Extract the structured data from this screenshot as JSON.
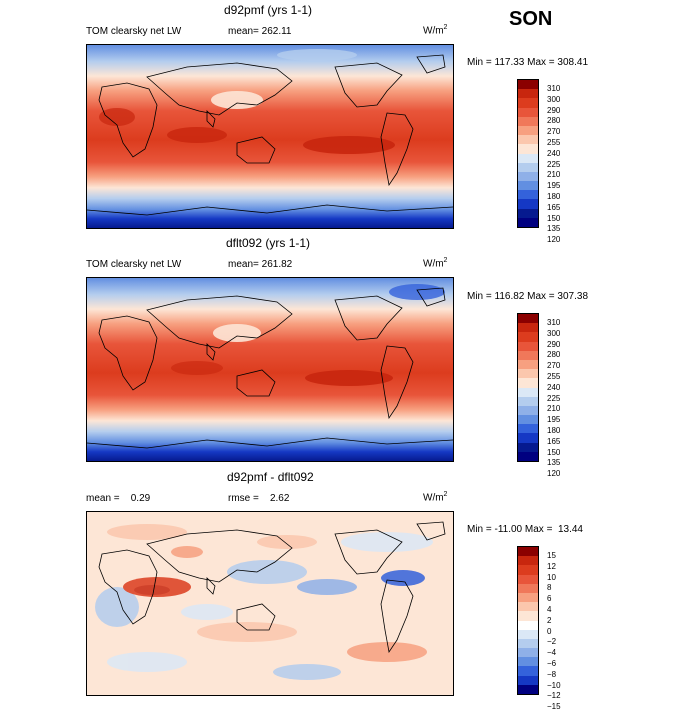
{
  "season": "SON",
  "panels": [
    {
      "title": "d92pmf (yrs 1-1)",
      "left_label": "TOM clearsky net LW",
      "mid_label": "mean= 262.11",
      "units": "W/m",
      "units_sup": "2",
      "minmax": "Min = 117.33 Max = 308.41",
      "levels": [
        "310",
        "300",
        "290",
        "280",
        "270",
        "255",
        "240",
        "225",
        "210",
        "195",
        "180",
        "165",
        "150",
        "135",
        "120"
      ],
      "colors": [
        "#8b0000",
        "#c8260e",
        "#dc3c1e",
        "#e8553a",
        "#f0785a",
        "#f7a080",
        "#fbc7ad",
        "#fde6d6",
        "#dbe8f6",
        "#b4cdee",
        "#8fb0e8",
        "#628fe1",
        "#3462db",
        "#1538c4",
        "#061a8f",
        "#000080"
      ]
    },
    {
      "title": "dflt092 (yrs 1-1)",
      "left_label": "TOM clearsky net LW",
      "mid_label": "mean= 261.82",
      "units": "W/m",
      "units_sup": "2",
      "minmax": "Min = 116.82 Max = 307.38",
      "levels": [
        "310",
        "300",
        "290",
        "280",
        "270",
        "255",
        "240",
        "225",
        "210",
        "195",
        "180",
        "165",
        "150",
        "135",
        "120"
      ],
      "colors": [
        "#8b0000",
        "#c8260e",
        "#dc3c1e",
        "#e8553a",
        "#f0785a",
        "#f7a080",
        "#fbc7ad",
        "#fde6d6",
        "#dbe8f6",
        "#b4cdee",
        "#8fb0e8",
        "#628fe1",
        "#3462db",
        "#1538c4",
        "#061a8f",
        "#000080"
      ]
    },
    {
      "title": "d92pmf - dflt092",
      "left_label": "mean =    0.29",
      "mid_label": "rmse =    2.62",
      "units": "W/m",
      "units_sup": "2",
      "minmax": "Min = -11.00 Max =  13.44",
      "levels": [
        "15",
        "12",
        "10",
        "8",
        "6",
        "4",
        "2",
        "0",
        "−2",
        "−4",
        "−6",
        "−8",
        "−10",
        "−12",
        "−15"
      ],
      "colors": [
        "#8b0000",
        "#c8260e",
        "#dc3c1e",
        "#e8553a",
        "#f0785a",
        "#f7a080",
        "#fbc7ad",
        "#fde6d6",
        "#ffffff",
        "#dbe8f6",
        "#b4cdee",
        "#8fb0e8",
        "#628fe1",
        "#3462db",
        "#1538c4",
        "#000080"
      ]
    }
  ]
}
